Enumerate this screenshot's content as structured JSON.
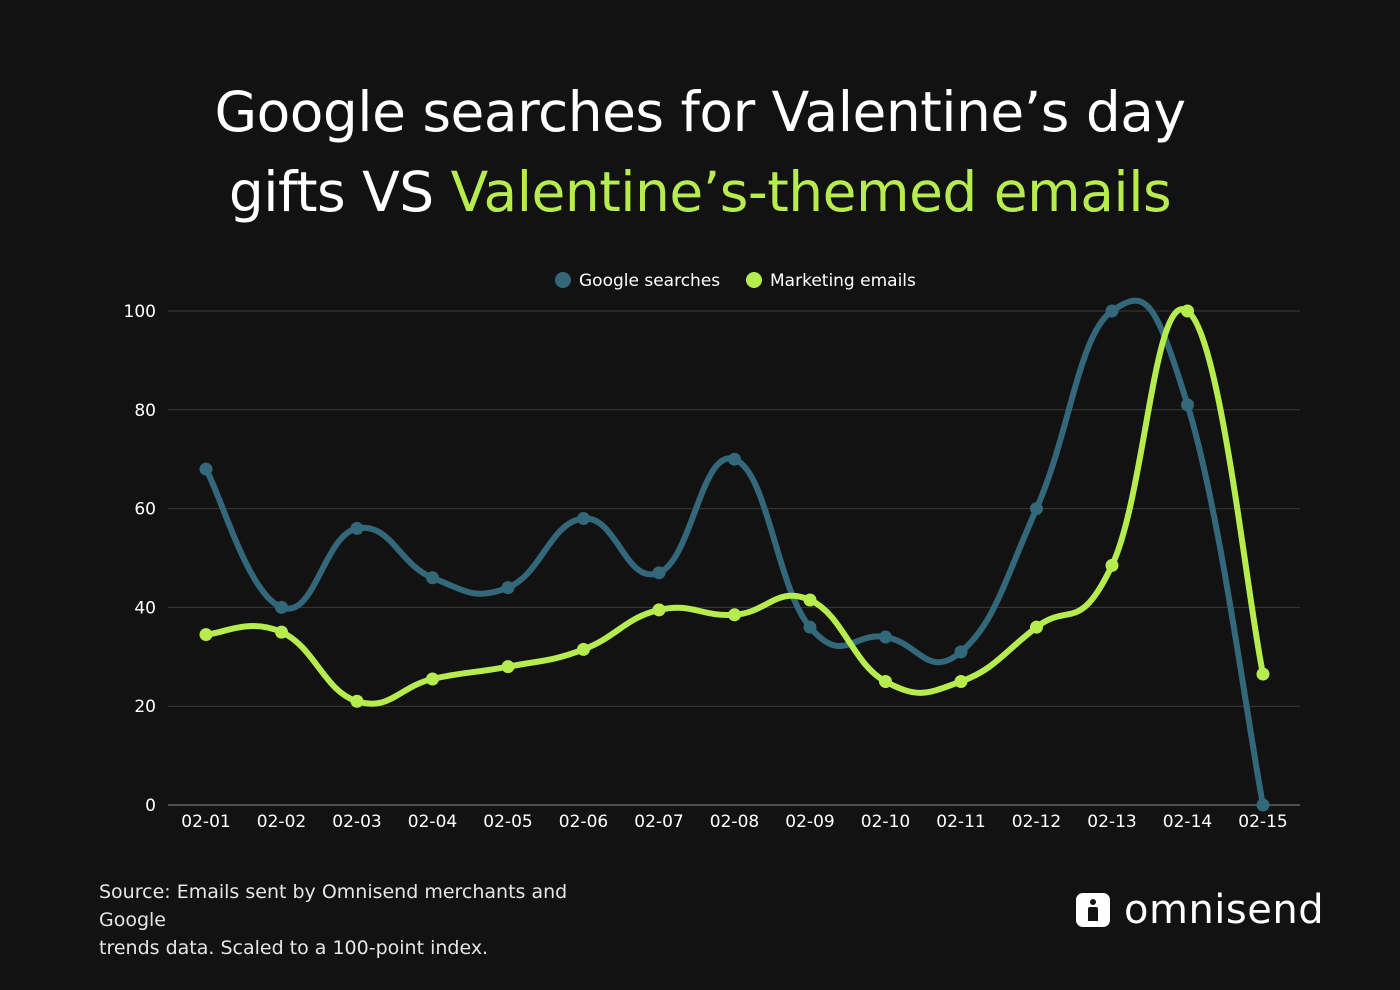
{
  "title": {
    "line1": "Google searches for Valentine’s day",
    "line2_plain": "gifts VS ",
    "line2_accent": "Valentine’s-themed emails"
  },
  "colors": {
    "background": "#121212",
    "google": "#33687a",
    "marketing": "#b6ec4e",
    "grid": "#3a3a3a",
    "text": "#ffffff"
  },
  "chart_data": {
    "type": "line",
    "smooth": true,
    "categories": [
      "02-01",
      "02-02",
      "02-03",
      "02-04",
      "02-05",
      "02-06",
      "02-07",
      "02-08",
      "02-09",
      "02-10",
      "02-11",
      "02-12",
      "02-13",
      "02-14",
      "02-15"
    ],
    "yticks": [
      "0",
      "20",
      "40",
      "60",
      "80",
      "100"
    ],
    "ylim": [
      0,
      100
    ],
    "grid": true,
    "legend_position": "top-center",
    "series": [
      {
        "name": "Google searches",
        "color": "#33687a",
        "values": [
          68,
          40,
          56,
          46,
          44,
          58,
          47,
          70,
          36,
          34,
          31,
          60,
          100,
          81,
          0
        ]
      },
      {
        "name": "Marketing emails",
        "color": "#b6ec4e",
        "values": [
          34.5,
          35,
          21,
          25.5,
          28,
          31.5,
          39.5,
          38.5,
          41.5,
          25,
          25,
          36,
          48.5,
          100,
          26.5
        ]
      }
    ]
  },
  "footer": {
    "source_line1": "Source: Emails sent by Omnisend merchants and Google",
    "source_line2": "trends data. Scaled to a 100-point index.",
    "brand_name": "omnisend"
  }
}
